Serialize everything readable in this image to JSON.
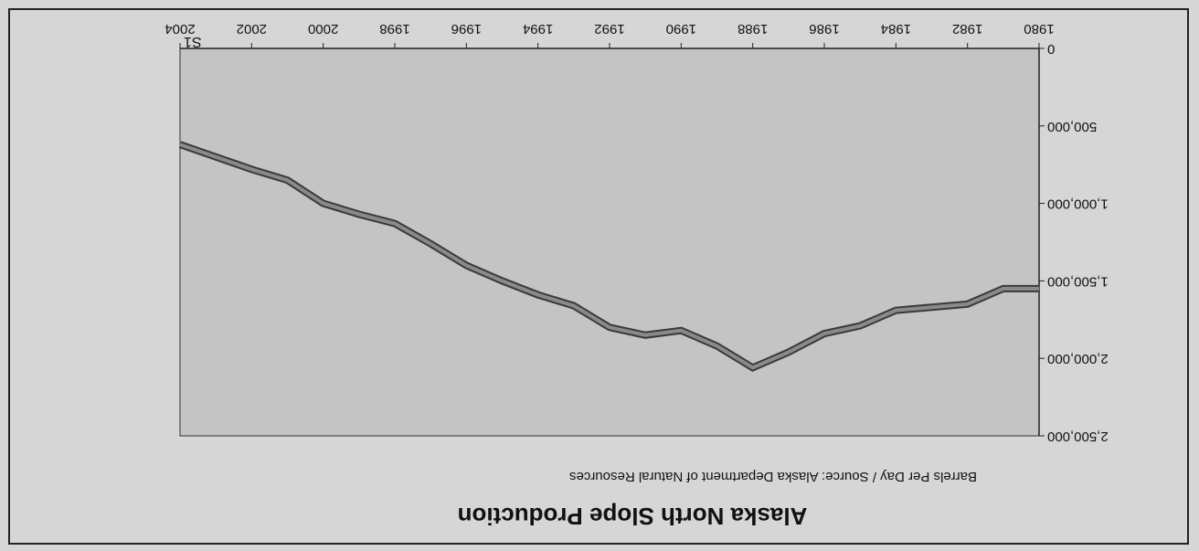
{
  "chart_data": {
    "type": "line",
    "title": "Alaska North Slope Production",
    "subtitle": "Barrels Per Day / Source: Alaska Department of Natural Resources",
    "x": [
      1980,
      1981,
      1982,
      1983,
      1984,
      1985,
      1986,
      1987,
      1988,
      1989,
      1990,
      1991,
      1992,
      1993,
      1994,
      1995,
      1996,
      1997,
      1998,
      1999,
      2000,
      2001,
      2002,
      2003,
      2004
    ],
    "series": [
      {
        "name": "S1",
        "color": "#3a3a3a",
        "values": [
          1550000,
          1550000,
          1650000,
          1670000,
          1690000,
          1790000,
          1840000,
          1960000,
          2060000,
          1920000,
          1820000,
          1850000,
          1800000,
          1660000,
          1590000,
          1500000,
          1400000,
          1260000,
          1130000,
          1070000,
          1000000,
          850000,
          780000,
          700000,
          620000
        ]
      }
    ],
    "xlim": [
      1980,
      2004
    ],
    "xticks": [
      1980,
      1982,
      1984,
      1986,
      1988,
      1990,
      1992,
      1994,
      1996,
      1998,
      2000,
      2002,
      2004
    ],
    "ylim": [
      0,
      2500000
    ],
    "yticks": [
      0,
      {
        "value": 500000,
        "label": "500,000"
      },
      {
        "value": 1000000,
        "label": "1,000,000"
      },
      {
        "value": 1500000,
        "label": "1,500,000"
      },
      {
        "value": 2000000,
        "label": "2,000,000"
      },
      {
        "value": 2500000,
        "label": "2,500,000"
      }
    ],
    "rotated": true
  }
}
